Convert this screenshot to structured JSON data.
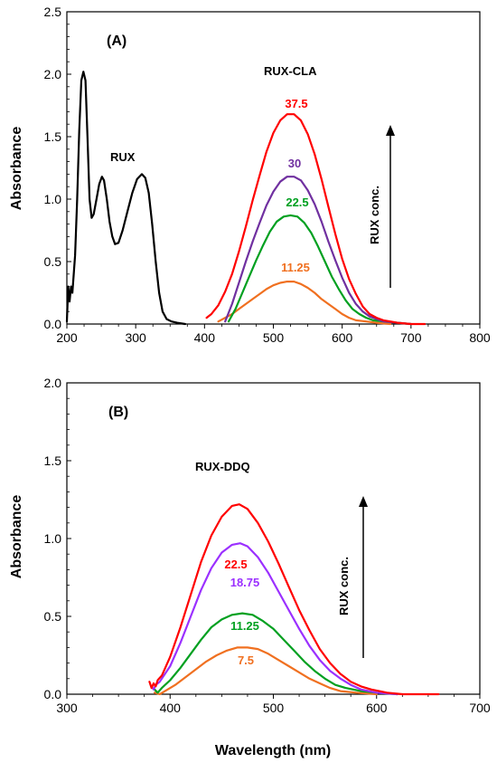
{
  "chart_data": [
    {
      "type": "line",
      "panel_label": "(A)",
      "xlabel": "",
      "ylabel": "Absorbance",
      "xlim": [
        200,
        800
      ],
      "ylim": [
        0,
        2.5
      ],
      "xticks": [
        "200",
        "300",
        "400",
        "500",
        "600",
        "700",
        "800"
      ],
      "yticks": [
        "0.0",
        "0.5",
        "1.0",
        "1.5",
        "2.0",
        "2.5"
      ],
      "annotations": [
        "RUX",
        "RUX-CLA",
        "RUX conc."
      ],
      "arrow": "up",
      "series": [
        {
          "name": "RUX",
          "color": "#000000",
          "points": [
            [
              200,
              0.02
            ],
            [
              202,
              0.3
            ],
            [
              204,
              0.18
            ],
            [
              206,
              0.3
            ],
            [
              208,
              0.25
            ],
            [
              212,
              0.55
            ],
            [
              215,
              1.0
            ],
            [
              218,
              1.55
            ],
            [
              221,
              1.95
            ],
            [
              224,
              2.02
            ],
            [
              227,
              1.95
            ],
            [
              230,
              1.5
            ],
            [
              233,
              1.0
            ],
            [
              236,
              0.85
            ],
            [
              239,
              0.88
            ],
            [
              243,
              1.0
            ],
            [
              247,
              1.12
            ],
            [
              251,
              1.18
            ],
            [
              254,
              1.15
            ],
            [
              258,
              1.0
            ],
            [
              262,
              0.82
            ],
            [
              266,
              0.7
            ],
            [
              270,
              0.64
            ],
            [
              275,
              0.65
            ],
            [
              281,
              0.75
            ],
            [
              288,
              0.9
            ],
            [
              295,
              1.05
            ],
            [
              302,
              1.16
            ],
            [
              309,
              1.2
            ],
            [
              314,
              1.17
            ],
            [
              319,
              1.05
            ],
            [
              324,
              0.8
            ],
            [
              329,
              0.5
            ],
            [
              334,
              0.25
            ],
            [
              339,
              0.1
            ],
            [
              345,
              0.04
            ],
            [
              352,
              0.02
            ],
            [
              360,
              0.01
            ],
            [
              372,
              0.0
            ]
          ]
        },
        {
          "name": "37.5",
          "color": "#ff0000",
          "points": [
            [
              403,
              0.05
            ],
            [
              410,
              0.08
            ],
            [
              420,
              0.15
            ],
            [
              430,
              0.26
            ],
            [
              440,
              0.4
            ],
            [
              450,
              0.58
            ],
            [
              460,
              0.78
            ],
            [
              470,
              0.99
            ],
            [
              480,
              1.19
            ],
            [
              490,
              1.38
            ],
            [
              500,
              1.53
            ],
            [
              510,
              1.63
            ],
            [
              520,
              1.68
            ],
            [
              530,
              1.68
            ],
            [
              540,
              1.63
            ],
            [
              550,
              1.52
            ],
            [
              560,
              1.36
            ],
            [
              570,
              1.16
            ],
            [
              580,
              0.94
            ],
            [
              590,
              0.72
            ],
            [
              600,
              0.52
            ],
            [
              610,
              0.36
            ],
            [
              620,
              0.24
            ],
            [
              630,
              0.14
            ],
            [
              640,
              0.08
            ],
            [
              650,
              0.05
            ],
            [
              660,
              0.03
            ],
            [
              670,
              0.02
            ],
            [
              680,
              0.01
            ],
            [
              700,
              0.0
            ],
            [
              720,
              0.0
            ]
          ]
        },
        {
          "name": "30",
          "color": "#7030a0",
          "points": [
            [
              430,
              0.02
            ],
            [
              440,
              0.16
            ],
            [
              450,
              0.33
            ],
            [
              460,
              0.5
            ],
            [
              470,
              0.66
            ],
            [
              480,
              0.81
            ],
            [
              490,
              0.95
            ],
            [
              500,
              1.06
            ],
            [
              510,
              1.14
            ],
            [
              520,
              1.18
            ],
            [
              530,
              1.18
            ],
            [
              540,
              1.15
            ],
            [
              550,
              1.07
            ],
            [
              560,
              0.96
            ],
            [
              570,
              0.82
            ],
            [
              580,
              0.66
            ],
            [
              590,
              0.51
            ],
            [
              600,
              0.37
            ],
            [
              610,
              0.25
            ],
            [
              620,
              0.16
            ],
            [
              630,
              0.1
            ],
            [
              640,
              0.06
            ],
            [
              650,
              0.04
            ],
            [
              660,
              0.02
            ],
            [
              680,
              0.01
            ],
            [
              700,
              0.0
            ]
          ]
        },
        {
          "name": "22.5",
          "color": "#00a020",
          "points": [
            [
              435,
              0.02
            ],
            [
              445,
              0.12
            ],
            [
              455,
              0.25
            ],
            [
              465,
              0.38
            ],
            [
              475,
              0.51
            ],
            [
              485,
              0.63
            ],
            [
              495,
              0.74
            ],
            [
              505,
              0.82
            ],
            [
              515,
              0.86
            ],
            [
              525,
              0.87
            ],
            [
              535,
              0.86
            ],
            [
              545,
              0.81
            ],
            [
              555,
              0.73
            ],
            [
              565,
              0.62
            ],
            [
              575,
              0.5
            ],
            [
              585,
              0.38
            ],
            [
              595,
              0.28
            ],
            [
              605,
              0.19
            ],
            [
              615,
              0.12
            ],
            [
              625,
              0.08
            ],
            [
              635,
              0.05
            ],
            [
              645,
              0.03
            ],
            [
              660,
              0.02
            ],
            [
              680,
              0.01
            ],
            [
              700,
              0.0
            ]
          ]
        },
        {
          "name": "11.25",
          "color": "#f07020",
          "points": [
            [
              420,
              0.02
            ],
            [
              430,
              0.05
            ],
            [
              440,
              0.08
            ],
            [
              450,
              0.12
            ],
            [
              460,
              0.16
            ],
            [
              470,
              0.2
            ],
            [
              480,
              0.24
            ],
            [
              490,
              0.28
            ],
            [
              500,
              0.31
            ],
            [
              510,
              0.33
            ],
            [
              520,
              0.34
            ],
            [
              530,
              0.34
            ],
            [
              540,
              0.32
            ],
            [
              550,
              0.29
            ],
            [
              560,
              0.25
            ],
            [
              570,
              0.2
            ],
            [
              580,
              0.16
            ],
            [
              590,
              0.12
            ],
            [
              600,
              0.08
            ],
            [
              610,
              0.05
            ],
            [
              620,
              0.03
            ],
            [
              635,
              0.02
            ],
            [
              650,
              0.01
            ],
            [
              670,
              0.0
            ]
          ]
        }
      ],
      "labels": [
        "37.5",
        "30",
        "22.5",
        "11.25"
      ]
    },
    {
      "type": "line",
      "panel_label": "(B)",
      "xlabel": "Wavelength (nm)",
      "ylabel": "Absorbance",
      "xlim": [
        300,
        700
      ],
      "ylim": [
        0,
        2.0
      ],
      "xticks": [
        "300",
        "400",
        "500",
        "600",
        "700"
      ],
      "yticks": [
        "0.0",
        "0.5",
        "1.0",
        "1.5",
        "2.0"
      ],
      "annotations": [
        "RUX-DDQ",
        "RUX conc."
      ],
      "arrow": "up",
      "series": [
        {
          "name": "22.5",
          "color": "#ff0000",
          "points": [
            [
              380,
              0.08
            ],
            [
              382,
              0.04
            ],
            [
              384,
              0.07
            ],
            [
              386,
              0.05
            ],
            [
              388,
              0.09
            ],
            [
              392,
              0.12
            ],
            [
              400,
              0.24
            ],
            [
              410,
              0.43
            ],
            [
              420,
              0.64
            ],
            [
              430,
              0.85
            ],
            [
              440,
              1.02
            ],
            [
              450,
              1.14
            ],
            [
              460,
              1.21
            ],
            [
              467,
              1.22
            ],
            [
              475,
              1.19
            ],
            [
              485,
              1.1
            ],
            [
              495,
              0.98
            ],
            [
              505,
              0.84
            ],
            [
              515,
              0.69
            ],
            [
              525,
              0.54
            ],
            [
              535,
              0.41
            ],
            [
              545,
              0.29
            ],
            [
              555,
              0.2
            ],
            [
              565,
              0.13
            ],
            [
              575,
              0.08
            ],
            [
              585,
              0.05
            ],
            [
              595,
              0.03
            ],
            [
              610,
              0.01
            ],
            [
              625,
              0.0
            ],
            [
              660,
              0.0
            ]
          ]
        },
        {
          "name": "18.75",
          "color": "#9b30ff",
          "points": [
            [
              382,
              0.05
            ],
            [
              384,
              0.03
            ],
            [
              386,
              0.06
            ],
            [
              390,
              0.08
            ],
            [
              400,
              0.18
            ],
            [
              410,
              0.33
            ],
            [
              420,
              0.5
            ],
            [
              430,
              0.67
            ],
            [
              440,
              0.81
            ],
            [
              450,
              0.91
            ],
            [
              460,
              0.96
            ],
            [
              468,
              0.97
            ],
            [
              475,
              0.95
            ],
            [
              485,
              0.88
            ],
            [
              495,
              0.78
            ],
            [
              505,
              0.66
            ],
            [
              515,
              0.54
            ],
            [
              525,
              0.42
            ],
            [
              535,
              0.31
            ],
            [
              545,
              0.22
            ],
            [
              555,
              0.15
            ],
            [
              565,
              0.1
            ],
            [
              575,
              0.06
            ],
            [
              585,
              0.03
            ],
            [
              600,
              0.01
            ],
            [
              620,
              0.0
            ]
          ]
        },
        {
          "name": "11.25",
          "color": "#00a020",
          "points": [
            [
              385,
              0.03
            ],
            [
              388,
              0.01
            ],
            [
              392,
              0.04
            ],
            [
              400,
              0.09
            ],
            [
              410,
              0.17
            ],
            [
              420,
              0.26
            ],
            [
              430,
              0.35
            ],
            [
              440,
              0.43
            ],
            [
              450,
              0.48
            ],
            [
              460,
              0.51
            ],
            [
              470,
              0.52
            ],
            [
              480,
              0.51
            ],
            [
              490,
              0.47
            ],
            [
              500,
              0.42
            ],
            [
              510,
              0.35
            ],
            [
              520,
              0.28
            ],
            [
              530,
              0.21
            ],
            [
              540,
              0.15
            ],
            [
              550,
              0.1
            ],
            [
              560,
              0.06
            ],
            [
              570,
              0.04
            ],
            [
              585,
              0.02
            ],
            [
              600,
              0.01
            ],
            [
              620,
              0.0
            ]
          ]
        },
        {
          "name": "7.5",
          "color": "#f07020",
          "points": [
            [
              385,
              0.01
            ],
            [
              390,
              0.0
            ],
            [
              395,
              0.02
            ],
            [
              405,
              0.06
            ],
            [
              415,
              0.11
            ],
            [
              425,
              0.16
            ],
            [
              435,
              0.21
            ],
            [
              445,
              0.25
            ],
            [
              455,
              0.28
            ],
            [
              465,
              0.3
            ],
            [
              475,
              0.3
            ],
            [
              485,
              0.29
            ],
            [
              495,
              0.26
            ],
            [
              505,
              0.22
            ],
            [
              515,
              0.18
            ],
            [
              525,
              0.14
            ],
            [
              535,
              0.1
            ],
            [
              545,
              0.07
            ],
            [
              555,
              0.04
            ],
            [
              565,
              0.02
            ],
            [
              580,
              0.01
            ],
            [
              600,
              0.0
            ]
          ]
        }
      ],
      "labels": [
        "22.5",
        "18.75",
        "11.25",
        "7.5"
      ]
    }
  ]
}
